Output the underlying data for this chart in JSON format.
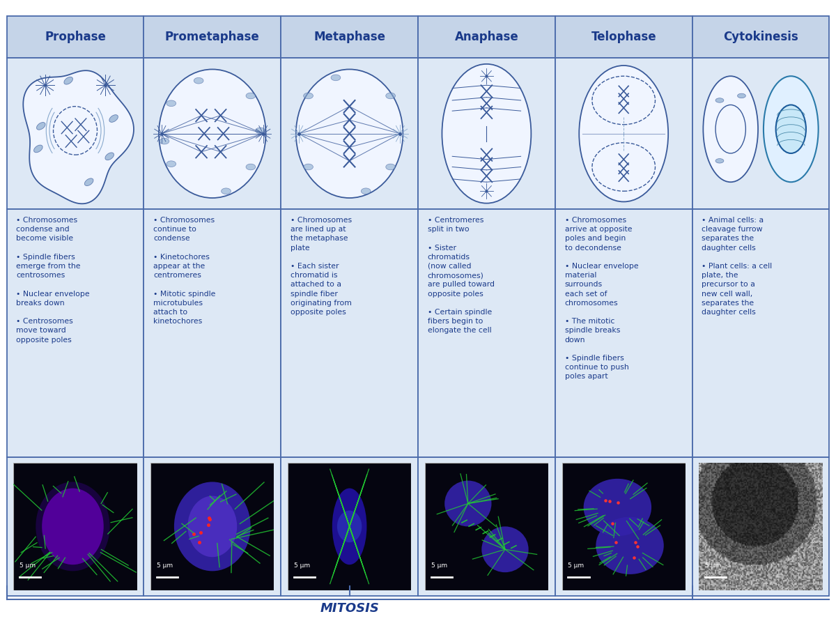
{
  "title": "MITOSIS",
  "phases": [
    "Prophase",
    "Prometaphase",
    "Metaphase",
    "Anaphase",
    "Telophase",
    "Cytokinesis"
  ],
  "bullet_points": [
    [
      "Chromosomes\ncondense and\nbecome visible",
      "Spindle fibers\nemerge from the\ncentrosomes",
      "Nuclear envelope\nbreaks down",
      "Centrosomes\nmove toward\nopposite poles"
    ],
    [
      "Chromosomes\ncontinue to\ncondense",
      "Kinetochores\nappear at the\ncentromeres",
      "Mitotic spindle\nmicrotubules\nattach to\nkinetochores"
    ],
    [
      "Chromosomes\nare lined up at\nthe metaphase\nplate",
      "Each sister\nchromatid is\nattached to a\nspindle fiber\noriginating from\nopposite poles"
    ],
    [
      "Centromeres\nsplit in two",
      "Sister\nchromatids\n(now called\nchromosomes)\nare pulled toward\nopposite poles",
      "Certain spindle\nfibers begin to\nelongate the cell"
    ],
    [
      "Chromosomes\narrive at opposite\npoles and begin\nto decondense",
      "Nuclear envelope\nmaterial\nsurrounds\neach set of\nchromosomes",
      "The mitotic\nspindle breaks\ndown",
      "Spindle fibers\ncontinue to push\npoles apart"
    ],
    [
      "Animal cells: a\ncleavage furrow\nseparates the\ndaughter cells",
      "Plant cells: a cell\nplate, the\nprecursor to a\nnew cell wall,\nseparates the\ndaughter cells"
    ]
  ],
  "scale_bar_text": "5 μm",
  "header_bg": "#c5d4e8",
  "cell_bg": "#dde8f5",
  "diagram_bg": "#dde8f5",
  "text_color": "#1a3a8a",
  "border_color": "#4a6aaa",
  "white_bg": "#ffffff",
  "cell_fill": "#f0f5ff",
  "cell_line": "#3a5a9a",
  "title_color": "#1a3a8a",
  "n_cols": 6,
  "fig_width": 12.0,
  "fig_height": 9.24
}
